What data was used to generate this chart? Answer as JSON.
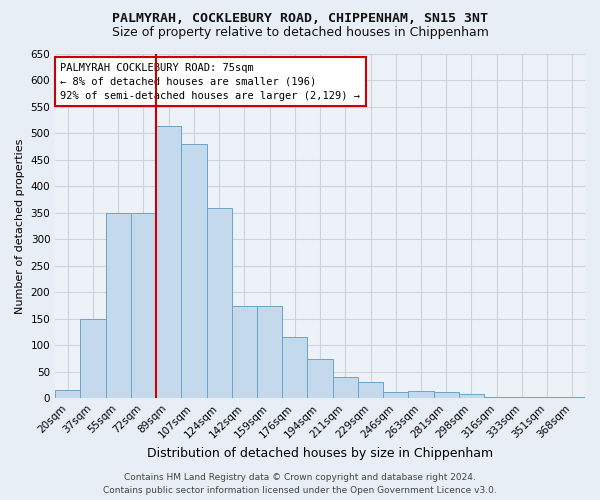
{
  "title1": "PALMYRAH, COCKLEBURY ROAD, CHIPPENHAM, SN15 3NT",
  "title2": "Size of property relative to detached houses in Chippenham",
  "xlabel": "Distribution of detached houses by size in Chippenham",
  "ylabel": "Number of detached properties",
  "categories": [
    "20sqm",
    "37sqm",
    "55sqm",
    "72sqm",
    "89sqm",
    "107sqm",
    "124sqm",
    "142sqm",
    "159sqm",
    "176sqm",
    "194sqm",
    "211sqm",
    "229sqm",
    "246sqm",
    "263sqm",
    "281sqm",
    "298sqm",
    "316sqm",
    "333sqm",
    "351sqm",
    "368sqm"
  ],
  "values": [
    15,
    150,
    350,
    350,
    515,
    480,
    360,
    175,
    175,
    115,
    75,
    40,
    30,
    12,
    13,
    12,
    8,
    3,
    2,
    2,
    3
  ],
  "bar_color": "#c5d9ed",
  "bar_edge_color": "#6ba3c8",
  "vline_color": "#cc0000",
  "vline_pos": 3.5,
  "annotation_text": "PALMYRAH COCKLEBURY ROAD: 75sqm\n← 8% of detached houses are smaller (196)\n92% of semi-detached houses are larger (2,129) →",
  "annotation_box_facecolor": "#ffffff",
  "annotation_box_edgecolor": "#cc0000",
  "ylim": [
    0,
    650
  ],
  "yticks": [
    0,
    50,
    100,
    150,
    200,
    250,
    300,
    350,
    400,
    450,
    500,
    550,
    600,
    650
  ],
  "footer1": "Contains HM Land Registry data © Crown copyright and database right 2024.",
  "footer2": "Contains public sector information licensed under the Open Government Licence v3.0.",
  "bg_color": "#e8eef5",
  "plot_bg_color": "#edf2f8",
  "grid_color": "#c8d4e0",
  "title_fontsize": 9.5,
  "subtitle_fontsize": 9,
  "ylabel_fontsize": 8,
  "xlabel_fontsize": 9,
  "tick_fontsize": 7.5,
  "footer_fontsize": 6.5,
  "annot_fontsize": 7.5
}
